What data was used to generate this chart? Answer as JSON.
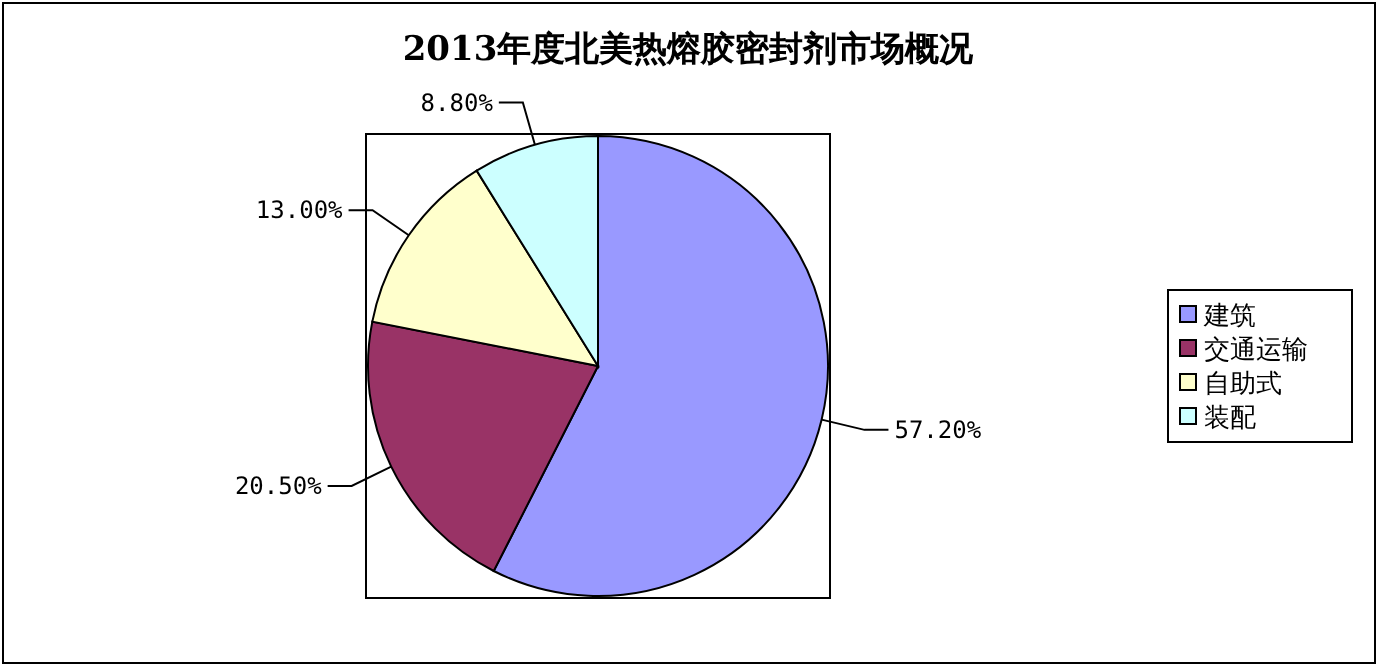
{
  "chart_data": {
    "type": "pie",
    "title": "2013年度北美热熔胶密封剂市场概况",
    "categories": [
      "建筑",
      "交通运输",
      "自助式",
      "装配"
    ],
    "values": [
      57.2,
      20.5,
      13.0,
      8.8
    ],
    "colors": [
      "#9999ff",
      "#993366",
      "#ffffcc",
      "#ccffff"
    ],
    "value_labels": [
      "57.20%",
      "20.50%",
      "13.00%",
      "8.80%"
    ],
    "legend": "right"
  }
}
